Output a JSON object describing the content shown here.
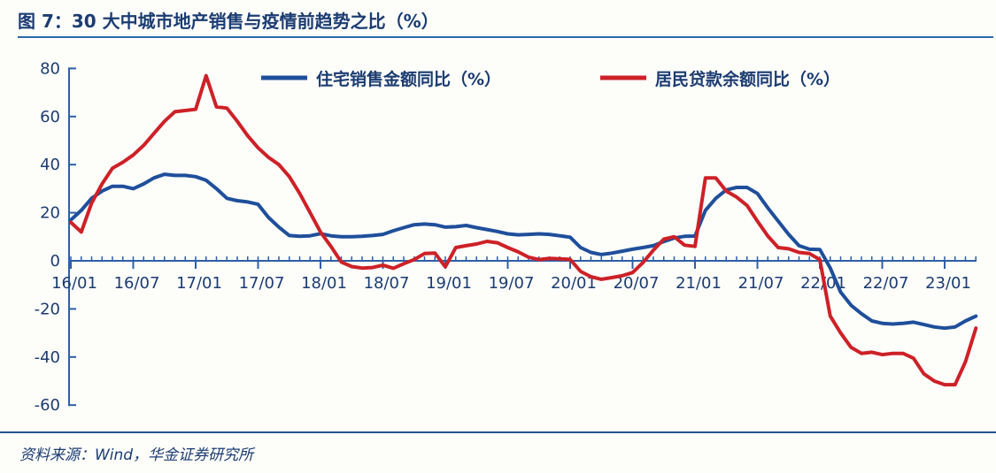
{
  "title": "图 7：30 大中城市地产销售与疫情前趋势之比（%）",
  "source_note": "资料来源：Wind，华金证券研究所",
  "colors": {
    "text_navy": "#1b3c72",
    "axis_blue": "#2e5fa8",
    "blue_line": "#1f4f9b",
    "red_line": "#cd2127",
    "background": "#fdfdfa"
  },
  "chart_data": {
    "type": "line",
    "title": "图 7：30 大中城市地产销售与疫情前趋势之比（%）",
    "xlabel": "",
    "ylabel": "",
    "ylim": [
      -60,
      80
    ],
    "y_ticks": [
      80,
      60,
      40,
      20,
      0,
      -20,
      -40,
      -60
    ],
    "x_label_every": 6,
    "grid": false,
    "legend_position": "top-center",
    "x": [
      "16/01",
      "16/02",
      "16/03",
      "16/04",
      "16/05",
      "16/06",
      "16/07",
      "16/08",
      "16/09",
      "16/10",
      "16/11",
      "16/12",
      "17/01",
      "17/02",
      "17/03",
      "17/04",
      "17/05",
      "17/06",
      "17/07",
      "17/08",
      "17/09",
      "17/10",
      "17/11",
      "17/12",
      "18/01",
      "18/02",
      "18/03",
      "18/04",
      "18/05",
      "18/06",
      "18/07",
      "18/08",
      "18/09",
      "18/10",
      "18/11",
      "18/12",
      "19/01",
      "19/02",
      "19/03",
      "19/04",
      "19/05",
      "19/06",
      "19/07",
      "19/08",
      "19/09",
      "19/10",
      "19/11",
      "19/12",
      "20/01",
      "20/02",
      "20/03",
      "20/04",
      "20/05",
      "20/06",
      "20/07",
      "20/08",
      "20/09",
      "20/10",
      "20/11",
      "20/12",
      "21/01",
      "21/02",
      "21/03",
      "21/04",
      "21/05",
      "21/06",
      "21/07",
      "21/08",
      "21/09",
      "21/10",
      "21/11",
      "21/12",
      "22/01",
      "22/02",
      "22/03",
      "22/04",
      "22/05",
      "22/06",
      "22/07",
      "22/08",
      "22/09",
      "22/10",
      "22/11",
      "22/12",
      "23/01",
      "23/02",
      "23/03",
      "23/04"
    ],
    "series": [
      {
        "name": "住宅销售金额同比（%）",
        "color": "#1f4f9b",
        "values": [
          17,
          21,
          26,
          29,
          31,
          31,
          30,
          32,
          34.5,
          36,
          35.5,
          35.5,
          35,
          33.5,
          30,
          26,
          25,
          24.5,
          23.5,
          18,
          14,
          10.5,
          10.2,
          10.4,
          11.3,
          10.4,
          10,
          10,
          10.2,
          10.5,
          11,
          12.5,
          13.8,
          15,
          15.3,
          15,
          14,
          14.2,
          14.7,
          13.8,
          13,
          12.2,
          11.2,
          10.8,
          11,
          11.2,
          11,
          10.4,
          9.8,
          5.5,
          3.5,
          2.6,
          3.2,
          4,
          4.8,
          5.5,
          6.3,
          8,
          9.5,
          10.2,
          10.3,
          21,
          26,
          29.5,
          30.5,
          30.5,
          28,
          22,
          16.5,
          11,
          6.3,
          4.8,
          4.7,
          -3,
          -13,
          -18.5,
          -22,
          -25,
          -26,
          -26.3,
          -26,
          -25.5,
          -26.5,
          -27.5,
          -28,
          -27.5,
          -25,
          -23
        ]
      },
      {
        "name": "居民贷款余额同比（%）",
        "color": "#cd2127",
        "values": [
          16,
          12,
          24,
          32,
          38.5,
          41,
          44,
          48,
          53,
          58,
          62,
          62.5,
          63,
          77,
          64,
          63.5,
          58,
          52,
          47,
          43,
          40,
          35,
          28,
          20,
          12,
          6,
          -0.5,
          -2.4,
          -3,
          -2.8,
          -1.8,
          -3.1,
          -1.2,
          0.5,
          3,
          3.2,
          -2.5,
          5.5,
          6.3,
          7,
          8.1,
          7.5,
          5.5,
          3.7,
          1.5,
          0.5,
          1,
          0.8,
          0.6,
          -4.4,
          -6.6,
          -7.7,
          -7,
          -6.2,
          -4.9,
          -0.7,
          4.4,
          9,
          10,
          6.5,
          6,
          34.5,
          34.5,
          29,
          26.5,
          23,
          16.5,
          10.3,
          5.5,
          5,
          3.5,
          3,
          0.5,
          -23,
          -30,
          -36,
          -38.5,
          -38,
          -39,
          -38.5,
          -38.5,
          -40.5,
          -47,
          -50,
          -51.5,
          -51.5,
          -42,
          -28
        ]
      }
    ]
  }
}
